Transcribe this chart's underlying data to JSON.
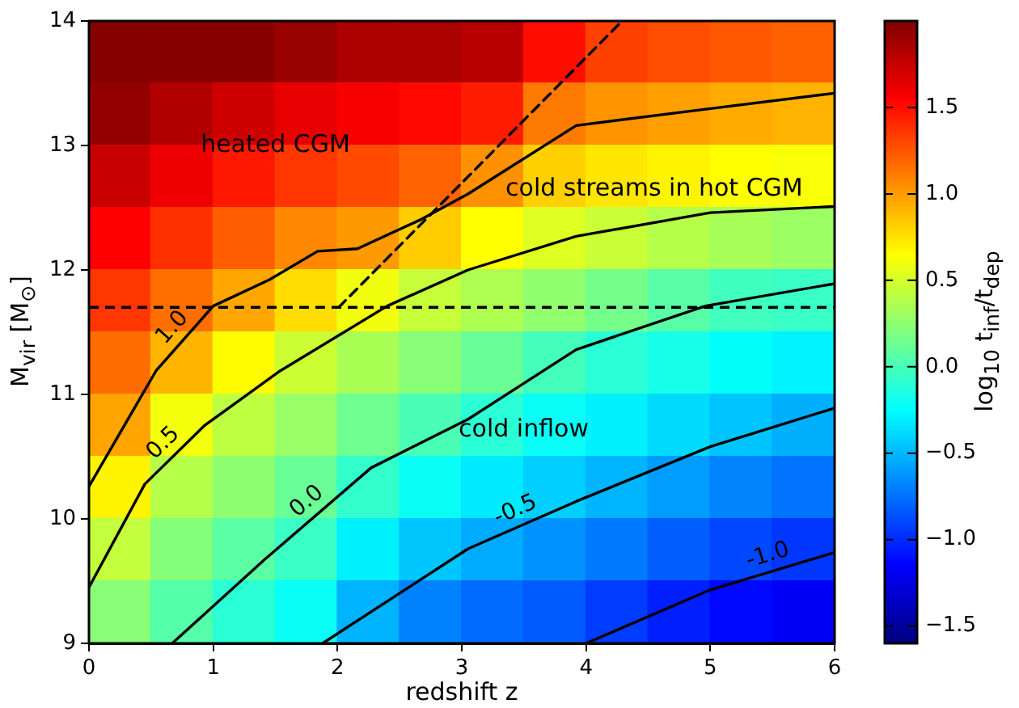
{
  "chart_data": {
    "type": "heatmap",
    "xlabel": "redshift z",
    "ylabel": "M$_{vir}$ [M$_{⊙}$]",
    "clabel": "log$_{10}$ t$_{inf}$/t$_{dep}$",
    "x": [
      0.25,
      0.75,
      1.25,
      1.75,
      2.25,
      2.75,
      3.25,
      3.75,
      4.25,
      4.75,
      5.25,
      5.75
    ],
    "y": [
      13.75,
      13.25,
      12.75,
      12.25,
      11.75,
      11.25,
      10.75,
      10.25,
      9.75,
      9.25
    ],
    "cells": [
      [
        1.98,
        1.97,
        1.97,
        1.91,
        1.84,
        1.85,
        1.8,
        1.5,
        1.32,
        1.28,
        1.24,
        1.21
      ],
      [
        1.93,
        1.83,
        1.72,
        1.63,
        1.57,
        1.52,
        1.45,
        1.12,
        1.03,
        0.99,
        0.95,
        0.92
      ],
      [
        1.74,
        1.61,
        1.47,
        1.36,
        1.29,
        1.2,
        1.04,
        0.82,
        0.74,
        0.69,
        0.65,
        0.63
      ],
      [
        1.55,
        1.38,
        1.22,
        1.07,
        1.01,
        0.83,
        0.65,
        0.53,
        0.46,
        0.39,
        0.34,
        0.3
      ],
      [
        1.36,
        1.16,
        0.96,
        0.77,
        0.6,
        0.45,
        0.36,
        0.26,
        0.16,
        0.06,
        -0.02,
        -0.05
      ],
      [
        1.17,
        0.91,
        0.66,
        0.47,
        0.35,
        0.23,
        0.12,
        -0.01,
        -0.1,
        -0.17,
        -0.24,
        -0.29
      ],
      [
        0.97,
        0.61,
        0.42,
        0.29,
        0.14,
        0.01,
        -0.1,
        -0.22,
        -0.3,
        -0.38,
        -0.46,
        -0.53
      ],
      [
        0.69,
        0.39,
        0.25,
        0.12,
        -0.07,
        -0.22,
        -0.32,
        -0.42,
        -0.51,
        -0.6,
        -0.68,
        -0.74
      ],
      [
        0.44,
        0.22,
        0.07,
        -0.05,
        -0.3,
        -0.45,
        -0.55,
        -0.63,
        -0.72,
        -0.82,
        -0.9,
        -0.96
      ],
      [
        0.23,
        0.05,
        -0.1,
        -0.22,
        -0.52,
        -0.69,
        -0.77,
        -0.83,
        -0.94,
        -1.04,
        -1.12,
        -1.18
      ]
    ],
    "clim": [
      -1.6,
      2.0
    ],
    "cticks": [
      {
        "value": -1.5,
        "label": "−1.5"
      },
      {
        "value": -1,
        "label": "−1.0"
      },
      {
        "value": -0.5,
        "label": "−0.5"
      },
      {
        "value": 0,
        "label": "0.0"
      },
      {
        "value": 0.5,
        "label": "0.5"
      },
      {
        "value": 1,
        "label": "1.0"
      },
      {
        "value": 1.5,
        "label": "1.5"
      }
    ],
    "xlim": [
      0,
      6
    ],
    "xticks": [
      0,
      1,
      2,
      3,
      4,
      5,
      6
    ],
    "ylim": [
      9,
      14
    ],
    "yticks": [
      9,
      10,
      11,
      12,
      13,
      14
    ],
    "series": [
      {
        "type": "line",
        "name": "1.0",
        "color": "#000000",
        "x": [
          0,
          0.54,
          1.0,
          1.45,
          1.84,
          2.16,
          2.66,
          3.05,
          3.92,
          4.87,
          6.0
        ],
        "values": [
          10.26,
          11.19,
          11.71,
          11.92,
          12.15,
          12.17,
          12.4,
          12.61,
          13.16,
          13.28,
          13.42
        ]
      },
      {
        "type": "line",
        "name": "0.5",
        "color": "#000000",
        "x": [
          0,
          0.45,
          0.93,
          1.54,
          2.4,
          3.05,
          3.92,
          5.0,
          6.0
        ],
        "values": [
          9.45,
          10.28,
          10.75,
          11.19,
          11.71,
          12.0,
          12.27,
          12.46,
          12.51
        ]
      },
      {
        "type": "line",
        "name": "0.0",
        "color": "#000000",
        "x": [
          0.67,
          1.41,
          2.27,
          3.05,
          3.92,
          4.96,
          6.0
        ],
        "values": [
          9.0,
          9.67,
          10.41,
          10.8,
          11.36,
          11.71,
          11.89
        ]
      },
      {
        "type": "line",
        "name": "-0.5",
        "color": "#000000",
        "x": [
          1.88,
          3.05,
          3.92,
          5.0,
          6.0
        ],
        "values": [
          9.0,
          9.76,
          10.14,
          10.58,
          10.89
        ]
      },
      {
        "type": "line",
        "name": "-1.0",
        "color": "#000000",
        "x": [
          4.0,
          5.0,
          6.0
        ],
        "values": [
          9.0,
          9.43,
          9.73
        ]
      },
      {
        "type": "line",
        "color": "#000000",
        "line_style": "dashed",
        "x": [
          2.01,
          4.29
        ],
        "values": [
          11.7,
          14.0
        ]
      }
    ],
    "ref_lines": [
      {
        "axis": "y",
        "value": 11.7,
        "color": "#000000",
        "line_style": "dashed"
      }
    ],
    "annotations": [
      "heated CGM",
      "cold streams in hot CGM",
      "cold inflow"
    ]
  }
}
